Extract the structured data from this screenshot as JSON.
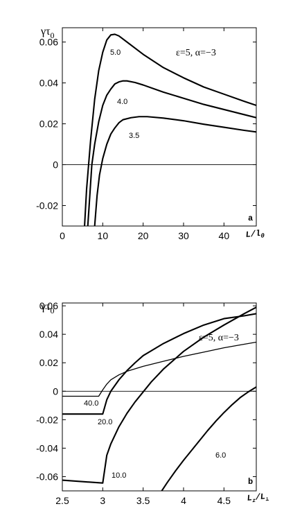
{
  "chart_data": [
    {
      "id": "a",
      "type": "line",
      "panel_label": "a",
      "ylabel": "γτ",
      "ylabel_sub": "0",
      "xlabel": "L/l",
      "xlabel_sub": "0",
      "annotation": "ε=5, α=−3",
      "xlim": [
        0,
        48
      ],
      "ylim": [
        -0.03,
        0.067
      ],
      "xticks": [
        0,
        10,
        20,
        30,
        40
      ],
      "xtick_labels": [
        "0",
        "10",
        "20",
        "30",
        "40"
      ],
      "yticks": [
        -0.02,
        0,
        0.02,
        0.04,
        0.06
      ],
      "ytick_labels": [
        "-0.02",
        "0",
        "0.02",
        "0.04",
        "0.06"
      ],
      "zero_line": true,
      "series": [
        {
          "label": "5.0",
          "stroke": "#000000",
          "points": [
            [
              5.5,
              -0.03
            ],
            [
              6.0,
              -0.012
            ],
            [
              6.5,
              0.0
            ],
            [
              7.0,
              0.012
            ],
            [
              7.5,
              0.022
            ],
            [
              8.0,
              0.032
            ],
            [
              9.0,
              0.046
            ],
            [
              10.0,
              0.055
            ],
            [
              11.0,
              0.061
            ],
            [
              12.0,
              0.0635
            ],
            [
              13.0,
              0.0638
            ],
            [
              14.0,
              0.063
            ],
            [
              16.0,
              0.06
            ],
            [
              20.0,
              0.054
            ],
            [
              25.0,
              0.0475
            ],
            [
              30.0,
              0.0425
            ],
            [
              35.0,
              0.038
            ],
            [
              40.0,
              0.0345
            ],
            [
              45.0,
              0.031
            ],
            [
              48.0,
              0.029
            ]
          ]
        },
        {
          "label": "4.0",
          "stroke": "#000000",
          "points": [
            [
              6.3,
              -0.03
            ],
            [
              6.8,
              -0.015
            ],
            [
              7.3,
              0.0
            ],
            [
              8.0,
              0.01
            ],
            [
              9.0,
              0.021
            ],
            [
              10.0,
              0.029
            ],
            [
              11.0,
              0.034
            ],
            [
              12.0,
              0.037
            ],
            [
              13.0,
              0.0395
            ],
            [
              14.0,
              0.0405
            ],
            [
              15.0,
              0.041
            ],
            [
              16.0,
              0.041
            ],
            [
              18.0,
              0.0402
            ],
            [
              20.0,
              0.039
            ],
            [
              25.0,
              0.0355
            ],
            [
              30.0,
              0.0325
            ],
            [
              35.0,
              0.0295
            ],
            [
              40.0,
              0.027
            ],
            [
              45.0,
              0.0245
            ],
            [
              48.0,
              0.023
            ]
          ]
        },
        {
          "label": "3.5",
          "stroke": "#000000",
          "points": [
            [
              8.0,
              -0.03
            ],
            [
              8.6,
              -0.015
            ],
            [
              9.2,
              -0.005
            ],
            [
              10.0,
              0.003
            ],
            [
              11.0,
              0.01
            ],
            [
              12.0,
              0.015
            ],
            [
              13.0,
              0.018
            ],
            [
              14.0,
              0.0205
            ],
            [
              15.0,
              0.022
            ],
            [
              17.0,
              0.023
            ],
            [
              19.0,
              0.0235
            ],
            [
              21.0,
              0.0235
            ],
            [
              25.0,
              0.0228
            ],
            [
              30.0,
              0.0215
            ],
            [
              35.0,
              0.0198
            ],
            [
              40.0,
              0.0183
            ],
            [
              45.0,
              0.0168
            ],
            [
              48.0,
              0.016
            ]
          ]
        }
      ]
    },
    {
      "id": "b",
      "type": "line",
      "panel_label": "b",
      "ylabel": "γτ",
      "ylabel_sub": "0",
      "xlabel": "L /L",
      "xlabel_sub1": "z",
      "xlabel_sub2": "⊥",
      "annotation": "ε=5, α=−3",
      "xlim": [
        2.5,
        4.9
      ],
      "ylim": [
        -0.07,
        0.062
      ],
      "xticks": [
        2.5,
        3.0,
        3.5,
        4.0,
        4.5
      ],
      "xtick_labels": [
        "2.5",
        "3",
        "3.5",
        "4",
        "4.5"
      ],
      "yticks": [
        -0.06,
        -0.04,
        -0.02,
        0,
        0.02,
        0.04,
        0.06
      ],
      "ytick_labels": [
        "-0.06",
        "-0.04",
        "-0.02",
        "0",
        "0.02",
        "0.04",
        "0.06"
      ],
      "zero_line": true,
      "series": [
        {
          "label": "40.0",
          "stroke": "#000000",
          "thin": true,
          "points": [
            [
              2.5,
              -0.0035
            ],
            [
              2.95,
              -0.0035
            ],
            [
              3.0,
              0.001
            ],
            [
              3.05,
              0.005
            ],
            [
              3.1,
              0.008
            ],
            [
              3.2,
              0.0115
            ],
            [
              3.3,
              0.014
            ],
            [
              3.5,
              0.0175
            ],
            [
              3.75,
              0.021
            ],
            [
              4.0,
              0.0245
            ],
            [
              4.25,
              0.0275
            ],
            [
              4.5,
              0.0305
            ],
            [
              4.75,
              0.033
            ],
            [
              4.9,
              0.0345
            ]
          ]
        },
        {
          "label": "20.0",
          "stroke": "#000000",
          "thin": false,
          "points": [
            [
              2.5,
              -0.016
            ],
            [
              3.0,
              -0.016
            ],
            [
              3.05,
              -0.006
            ],
            [
              3.1,
              0.0
            ],
            [
              3.2,
              0.008
            ],
            [
              3.3,
              0.0145
            ],
            [
              3.4,
              0.02
            ],
            [
              3.5,
              0.025
            ],
            [
              3.75,
              0.0335
            ],
            [
              4.0,
              0.0405
            ],
            [
              4.25,
              0.0465
            ],
            [
              4.5,
              0.051
            ],
            [
              4.75,
              0.053
            ],
            [
              4.9,
              0.0545
            ]
          ]
        },
        {
          "label": "10.0",
          "stroke": "#000000",
          "thin": false,
          "points": [
            [
              2.5,
              -0.0625
            ],
            [
              3.0,
              -0.0645
            ],
            [
              3.05,
              -0.045
            ],
            [
              3.1,
              -0.037
            ],
            [
              3.2,
              -0.025
            ],
            [
              3.3,
              -0.0155
            ],
            [
              3.4,
              -0.0075
            ],
            [
              3.5,
              -0.0005
            ],
            [
              3.6,
              0.0065
            ],
            [
              3.75,
              0.0155
            ],
            [
              4.0,
              0.028
            ],
            [
              4.25,
              0.038
            ],
            [
              4.5,
              0.0465
            ],
            [
              4.75,
              0.0545
            ],
            [
              4.9,
              0.059
            ]
          ]
        },
        {
          "label": "6.0",
          "stroke": "#000000",
          "thin": false,
          "points": [
            [
              3.73,
              -0.07
            ],
            [
              3.8,
              -0.064
            ],
            [
              3.9,
              -0.056
            ],
            [
              4.0,
              -0.0485
            ],
            [
              4.1,
              -0.0415
            ],
            [
              4.2,
              -0.0345
            ],
            [
              4.3,
              -0.0275
            ],
            [
              4.4,
              -0.021
            ],
            [
              4.5,
              -0.015
            ],
            [
              4.6,
              -0.0095
            ],
            [
              4.7,
              -0.0045
            ],
            [
              4.8,
              -0.0005
            ],
            [
              4.9,
              0.003
            ]
          ]
        }
      ]
    }
  ]
}
